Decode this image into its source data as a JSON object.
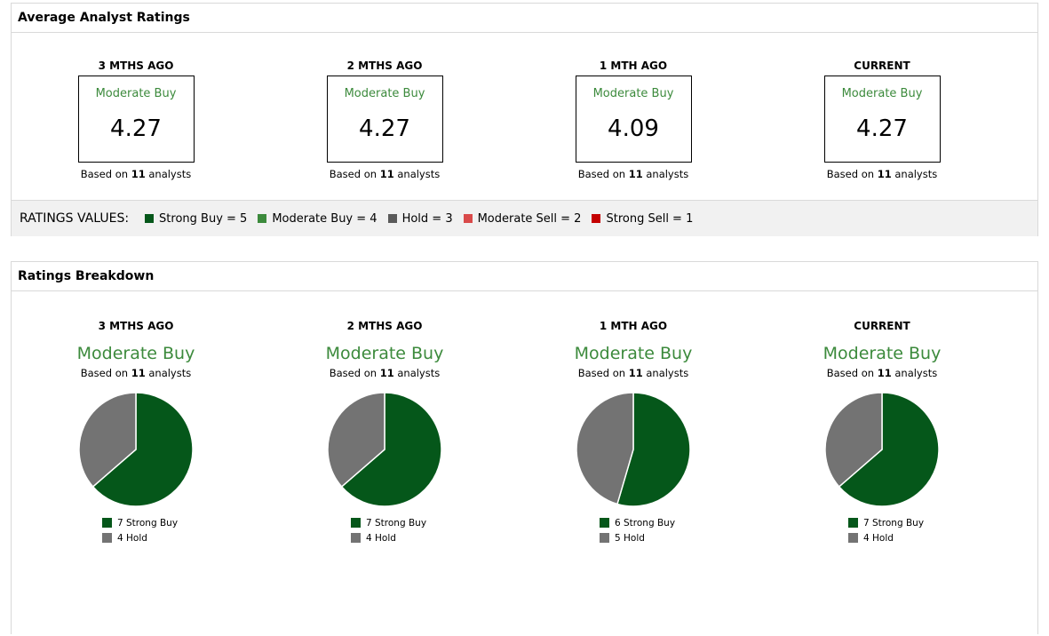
{
  "average": {
    "title": "Average Analyst Ratings",
    "columns": [
      {
        "period": "3 MTHS AGO",
        "rating": "Moderate Buy",
        "score": "4.27",
        "based_prefix": "Based on",
        "analysts": "11",
        "based_suffix": "analysts"
      },
      {
        "period": "2 MTHS AGO",
        "rating": "Moderate Buy",
        "score": "4.27",
        "based_prefix": "Based on",
        "analysts": "11",
        "based_suffix": "analysts"
      },
      {
        "period": "1 MTH AGO",
        "rating": "Moderate Buy",
        "score": "4.09",
        "based_prefix": "Based on",
        "analysts": "11",
        "based_suffix": "analysts"
      },
      {
        "period": "CURRENT",
        "rating": "Moderate Buy",
        "score": "4.27",
        "based_prefix": "Based on",
        "analysts": "11",
        "based_suffix": "analysts"
      }
    ],
    "ratings_values": {
      "label": "RATINGS VALUES:",
      "items": [
        {
          "text": "Strong Buy = 5",
          "color": "#05571a"
        },
        {
          "text": "Moderate Buy = 4",
          "color": "#3c8a3c"
        },
        {
          "text": "Hold = 3",
          "color": "#5a5a5a"
        },
        {
          "text": "Moderate Sell = 2",
          "color": "#d94a4a"
        },
        {
          "text": "Strong Sell = 1",
          "color": "#c40000"
        }
      ]
    }
  },
  "breakdown": {
    "title": "Ratings Breakdown",
    "columns": [
      {
        "period": "3 MTHS AGO",
        "rating": "Moderate Buy",
        "based_prefix": "Based on",
        "analysts": "11",
        "based_suffix": "analysts",
        "legend": [
          "7 Strong Buy",
          "4 Hold"
        ]
      },
      {
        "period": "2 MTHS AGO",
        "rating": "Moderate Buy",
        "based_prefix": "Based on",
        "analysts": "11",
        "based_suffix": "analysts",
        "legend": [
          "7 Strong Buy",
          "4 Hold"
        ]
      },
      {
        "period": "1 MTH AGO",
        "rating": "Moderate Buy",
        "based_prefix": "Based on",
        "analysts": "11",
        "based_suffix": "analysts",
        "legend": [
          "6 Strong Buy",
          "5 Hold"
        ]
      },
      {
        "period": "CURRENT",
        "rating": "Moderate Buy",
        "based_prefix": "Based on",
        "analysts": "11",
        "based_suffix": "analysts",
        "legend": [
          "7 Strong Buy",
          "4 Hold"
        ]
      }
    ]
  },
  "colors": {
    "strong_buy": "#05571a",
    "hold": "#737373",
    "rating_green": "#3c8a3c"
  },
  "chart_data": [
    {
      "type": "pie",
      "categories": [
        "Strong Buy",
        "Hold"
      ],
      "values": [
        7,
        4
      ]
    },
    {
      "type": "pie",
      "categories": [
        "Strong Buy",
        "Hold"
      ],
      "values": [
        7,
        4
      ]
    },
    {
      "type": "pie",
      "categories": [
        "Strong Buy",
        "Hold"
      ],
      "values": [
        6,
        5
      ]
    },
    {
      "type": "pie",
      "categories": [
        "Strong Buy",
        "Hold"
      ],
      "values": [
        7,
        4
      ]
    }
  ]
}
